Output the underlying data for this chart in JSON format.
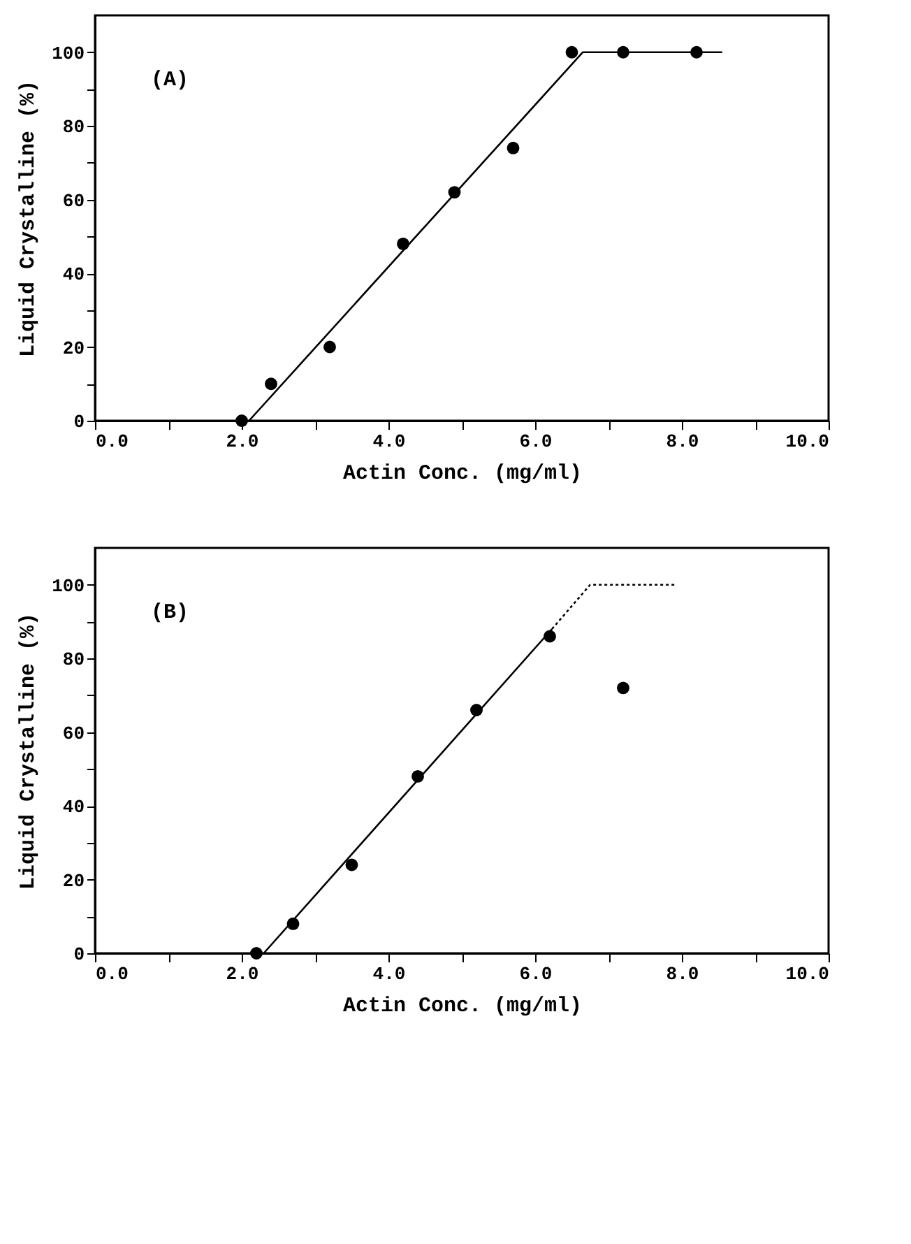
{
  "chart_data": [
    {
      "type": "scatter",
      "xlabel": "Actin Conc.  (mg/ml)",
      "ylabel": "Liquid Crystalline (%)",
      "annotations": [
        "(A)"
      ],
      "xlim": [
        0,
        10
      ],
      "ylim": [
        0,
        110
      ],
      "xticks": [
        {
          "value": 0,
          "label": "0.0"
        },
        {
          "value": 1,
          "label": null
        },
        {
          "value": 2,
          "label": "2.0"
        },
        {
          "value": 3,
          "label": null
        },
        {
          "value": 4,
          "label": "4.0"
        },
        {
          "value": 5,
          "label": null
        },
        {
          "value": 6,
          "label": "6.0"
        },
        {
          "value": 7,
          "label": null
        },
        {
          "value": 8,
          "label": "8.0"
        },
        {
          "value": 9,
          "label": null
        },
        {
          "value": 10,
          "label": "10.0"
        }
      ],
      "yticks": [
        0,
        {
          "value": 10,
          "label": null
        },
        20,
        {
          "value": 30,
          "label": null
        },
        40,
        {
          "value": 50,
          "label": null
        },
        60,
        {
          "value": 70,
          "label": null
        },
        80,
        {
          "value": 90,
          "label": null
        },
        100
      ],
      "grid": false,
      "series": [
        {
          "type": "scatter",
          "marker": "circle",
          "color": "#000000",
          "x": [
            2.0,
            2.4,
            3.2,
            4.2,
            4.9,
            5.7,
            6.5,
            7.2,
            8.2
          ],
          "values": [
            0,
            10,
            20,
            48,
            62,
            74,
            100,
            100,
            100
          ]
        },
        {
          "type": "line",
          "line_style": "solid",
          "color": "#000000",
          "x": [
            2.1,
            6.65,
            8.55
          ],
          "values": [
            0,
            100,
            100
          ]
        }
      ]
    },
    {
      "type": "scatter",
      "xlabel": "Actin Conc.  (mg/ml)",
      "ylabel": "Liquid Crystalline (%)",
      "annotations": [
        "(B)"
      ],
      "xlim": [
        0,
        10
      ],
      "ylim": [
        0,
        110
      ],
      "xticks": [
        {
          "value": 0,
          "label": "0.0"
        },
        {
          "value": 1,
          "label": null
        },
        {
          "value": 2,
          "label": "2.0"
        },
        {
          "value": 3,
          "label": null
        },
        {
          "value": 4,
          "label": "4.0"
        },
        {
          "value": 5,
          "label": null
        },
        {
          "value": 6,
          "label": "6.0"
        },
        {
          "value": 7,
          "label": null
        },
        {
          "value": 8,
          "label": "8.0"
        },
        {
          "value": 9,
          "label": null
        },
        {
          "value": 10,
          "label": "10.0"
        }
      ],
      "yticks": [
        0,
        {
          "value": 10,
          "label": null
        },
        20,
        {
          "value": 30,
          "label": null
        },
        40,
        {
          "value": 50,
          "label": null
        },
        60,
        {
          "value": 70,
          "label": null
        },
        80,
        {
          "value": 90,
          "label": null
        },
        100
      ],
      "grid": false,
      "series": [
        {
          "type": "scatter",
          "marker": "circle",
          "color": "#000000",
          "x": [
            2.2,
            2.7,
            3.5,
            4.4,
            5.2,
            6.2,
            7.2
          ],
          "values": [
            0,
            8,
            24,
            48,
            66,
            86,
            72
          ]
        },
        {
          "type": "line",
          "line_style": "solid",
          "color": "#000000",
          "x": [
            2.3,
            6.23
          ],
          "values": [
            0,
            88
          ]
        },
        {
          "type": "line",
          "line_style": "dotted",
          "color": "#000000",
          "x": [
            6.23,
            6.75,
            7.9
          ],
          "values": [
            88,
            100,
            100
          ]
        }
      ]
    }
  ]
}
